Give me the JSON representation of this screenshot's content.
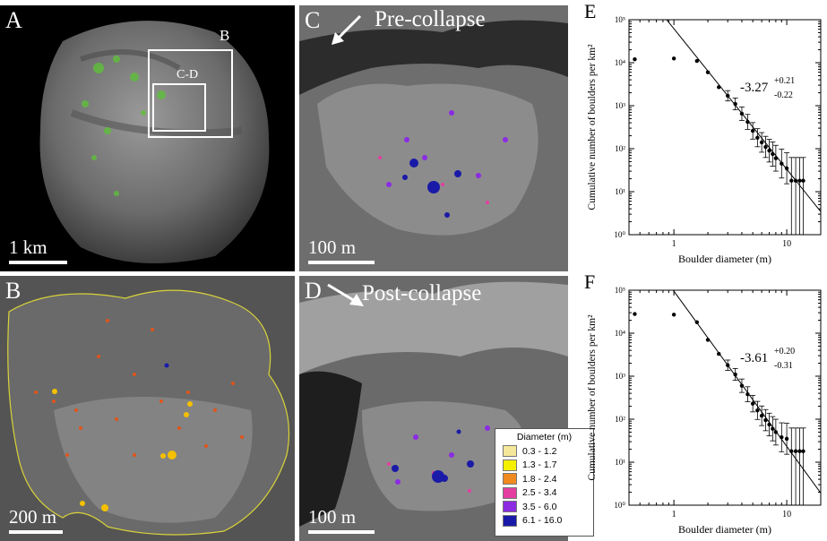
{
  "panels": {
    "A": {
      "letter": "A",
      "scale": "1 km",
      "box_b": "B",
      "box_cd": "C-D"
    },
    "B": {
      "letter": "B",
      "scale": "200 m"
    },
    "C": {
      "letter": "C",
      "scale": "100 m",
      "title": "Pre-collapse"
    },
    "D": {
      "letter": "D",
      "scale": "100 m",
      "title": "Post-collapse"
    }
  },
  "legend": {
    "title": "Diameter (m)",
    "items": [
      {
        "label": "0.3 - 1.2",
        "color": "#f4e79a"
      },
      {
        "label": "1.3 - 1.7",
        "color": "#f5f000"
      },
      {
        "label": "1.8 - 2.4",
        "color": "#f08a1e"
      },
      {
        "label": "2.5 - 3.4",
        "color": "#e43fa0"
      },
      {
        "label": "3.5 - 6.0",
        "color": "#8b2be2"
      },
      {
        "label": "6.1 - 16.0",
        "color": "#1a1aa8"
      }
    ]
  },
  "chart_data": [
    {
      "panel": "E",
      "type": "scatter",
      "xlabel": "Boulder diameter (m)",
      "ylabel": "Cumulative number of boulders per km²",
      "x_scale": "log",
      "y_scale": "log",
      "xlim": [
        0.4,
        20
      ],
      "ylim": [
        1,
        100000
      ],
      "x_ticks": [
        "1",
        "10"
      ],
      "y_ticks": [
        "10⁰",
        "10¹",
        "10²",
        "10³",
        "10⁴",
        "10⁵"
      ],
      "fit_label": {
        "main": "-3.27",
        "sup": "+0.21",
        "sub": "-0.22"
      },
      "slope": -3.27,
      "points": [
        {
          "x": 0.45,
          "y": 12000
        },
        {
          "x": 1.0,
          "y": 12500
        },
        {
          "x": 1.6,
          "y": 11000
        },
        {
          "x": 2.0,
          "y": 6000
        },
        {
          "x": 2.5,
          "y": 2700
        },
        {
          "x": 3.0,
          "y": 1700
        },
        {
          "x": 3.5,
          "y": 1100
        },
        {
          "x": 4.0,
          "y": 650
        },
        {
          "x": 4.5,
          "y": 420
        },
        {
          "x": 5.0,
          "y": 260
        },
        {
          "x": 5.5,
          "y": 180
        },
        {
          "x": 6.0,
          "y": 140
        },
        {
          "x": 6.5,
          "y": 110
        },
        {
          "x": 7.0,
          "y": 90
        },
        {
          "x": 7.5,
          "y": 75
        },
        {
          "x": 8.0,
          "y": 60
        },
        {
          "x": 9.0,
          "y": 45
        },
        {
          "x": 10.0,
          "y": 35
        },
        {
          "x": 11.0,
          "y": 18
        },
        {
          "x": 12.0,
          "y": 18
        },
        {
          "x": 13.0,
          "y": 18
        },
        {
          "x": 14.0,
          "y": 18
        }
      ]
    },
    {
      "panel": "F",
      "type": "scatter",
      "xlabel": "Boulder diameter (m)",
      "ylabel": "Cumulative number of boulders per km²",
      "x_scale": "log",
      "y_scale": "log",
      "xlim": [
        0.4,
        20
      ],
      "ylim": [
        1,
        100000
      ],
      "x_ticks": [
        "1",
        "10"
      ],
      "y_ticks": [
        "10⁰",
        "10¹",
        "10²",
        "10³",
        "10⁴",
        "10⁵"
      ],
      "fit_label": {
        "main": "-3.61",
        "sup": "+0.20",
        "sub": "-0.31"
      },
      "slope": -3.61,
      "points": [
        {
          "x": 0.45,
          "y": 28000
        },
        {
          "x": 1.0,
          "y": 27000
        },
        {
          "x": 1.6,
          "y": 18000
        },
        {
          "x": 2.0,
          "y": 7000
        },
        {
          "x": 2.5,
          "y": 3300
        },
        {
          "x": 3.0,
          "y": 1800
        },
        {
          "x": 3.5,
          "y": 1100
        },
        {
          "x": 4.0,
          "y": 600
        },
        {
          "x": 4.5,
          "y": 380
        },
        {
          "x": 5.0,
          "y": 230
        },
        {
          "x": 5.5,
          "y": 160
        },
        {
          "x": 6.0,
          "y": 120
        },
        {
          "x": 6.5,
          "y": 95
        },
        {
          "x": 7.0,
          "y": 75
        },
        {
          "x": 7.5,
          "y": 60
        },
        {
          "x": 8.0,
          "y": 50
        },
        {
          "x": 9.0,
          "y": 38
        },
        {
          "x": 10.0,
          "y": 35
        },
        {
          "x": 11.0,
          "y": 18
        },
        {
          "x": 12.0,
          "y": 18
        },
        {
          "x": 13.0,
          "y": 18
        },
        {
          "x": 14.0,
          "y": 18
        }
      ]
    }
  ]
}
